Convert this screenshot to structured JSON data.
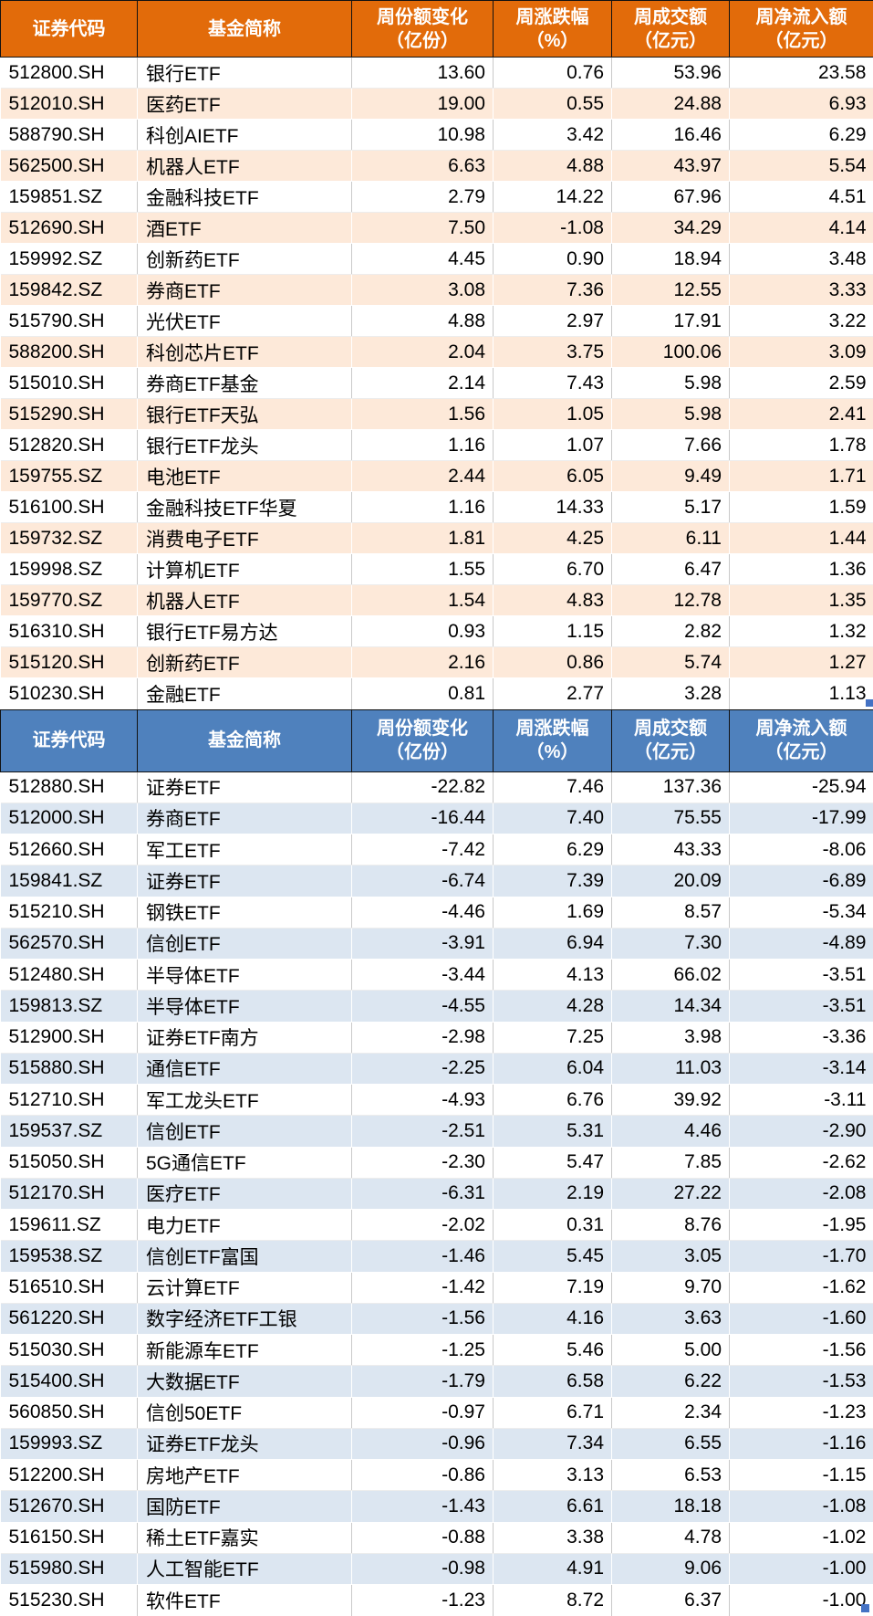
{
  "chart_data": [
    {
      "type": "table",
      "name": "weekly-net-inflow-ranking",
      "theme": {
        "header_bg": "#E26B0A",
        "header_text": "#FFFFFF",
        "band_bg": "#FDE9D9",
        "row_bg": "#FFFFFF",
        "text": "#000000"
      },
      "columns": [
        {
          "line1": "证券代码",
          "line2": ""
        },
        {
          "line1": "基金简称",
          "line2": ""
        },
        {
          "line1": "周份额变化",
          "line2": "（亿份）"
        },
        {
          "line1": "周涨跌幅",
          "line2": "（%）"
        },
        {
          "line1": "周成交额",
          "line2": "（亿元）"
        },
        {
          "line1": "周净流入额",
          "line2": "（亿元）"
        }
      ],
      "rows": [
        [
          "512800.SH",
          "银行ETF",
          "13.60",
          "0.76",
          "53.96",
          "23.58"
        ],
        [
          "512010.SH",
          "医药ETF",
          "19.00",
          "0.55",
          "24.88",
          "6.93"
        ],
        [
          "588790.SH",
          "科创AIETF",
          "10.98",
          "3.42",
          "16.46",
          "6.29"
        ],
        [
          "562500.SH",
          "机器人ETF",
          "6.63",
          "4.88",
          "43.97",
          "5.54"
        ],
        [
          "159851.SZ",
          "金融科技ETF",
          "2.79",
          "14.22",
          "67.96",
          "4.51"
        ],
        [
          "512690.SH",
          "酒ETF",
          "7.50",
          "-1.08",
          "34.29",
          "4.14"
        ],
        [
          "159992.SZ",
          "创新药ETF",
          "4.45",
          "0.90",
          "18.94",
          "3.48"
        ],
        [
          "159842.SZ",
          "券商ETF",
          "3.08",
          "7.36",
          "12.55",
          "3.33"
        ],
        [
          "515790.SH",
          "光伏ETF",
          "4.88",
          "2.97",
          "17.91",
          "3.22"
        ],
        [
          "588200.SH",
          "科创芯片ETF",
          "2.04",
          "3.75",
          "100.06",
          "3.09"
        ],
        [
          "515010.SH",
          "券商ETF基金",
          "2.14",
          "7.43",
          "5.98",
          "2.59"
        ],
        [
          "515290.SH",
          "银行ETF天弘",
          "1.56",
          "1.05",
          "5.98",
          "2.41"
        ],
        [
          "512820.SH",
          "银行ETF龙头",
          "1.16",
          "1.07",
          "7.66",
          "1.78"
        ],
        [
          "159755.SZ",
          "电池ETF",
          "2.44",
          "6.05",
          "9.49",
          "1.71"
        ],
        [
          "516100.SH",
          "金融科技ETF华夏",
          "1.16",
          "14.33",
          "5.17",
          "1.59"
        ],
        [
          "159732.SZ",
          "消费电子ETF",
          "1.81",
          "4.25",
          "6.11",
          "1.44"
        ],
        [
          "159998.SZ",
          "计算机ETF",
          "1.55",
          "6.70",
          "6.47",
          "1.36"
        ],
        [
          "159770.SZ",
          "机器人ETF",
          "1.54",
          "4.83",
          "12.78",
          "1.35"
        ],
        [
          "516310.SH",
          "银行ETF易方达",
          "0.93",
          "1.15",
          "2.82",
          "1.32"
        ],
        [
          "515120.SH",
          "创新药ETF",
          "2.16",
          "0.86",
          "5.74",
          "1.27"
        ],
        [
          "510230.SH",
          "金融ETF",
          "0.81",
          "2.77",
          "3.28",
          "1.13"
        ]
      ]
    },
    {
      "type": "table",
      "name": "weekly-net-outflow-ranking",
      "theme": {
        "header_bg": "#4F81BD",
        "header_text": "#FFFFFF",
        "band_bg": "#DCE6F1",
        "row_bg": "#FFFFFF",
        "text": "#000000"
      },
      "columns": [
        {
          "line1": "证券代码",
          "line2": ""
        },
        {
          "line1": "基金简称",
          "line2": ""
        },
        {
          "line1": "周份额变化",
          "line2": "（亿份）"
        },
        {
          "line1": "周涨跌幅",
          "line2": "（%）"
        },
        {
          "line1": "周成交额",
          "line2": "（亿元）"
        },
        {
          "line1": "周净流入额",
          "line2": "（亿元）"
        }
      ],
      "rows": [
        [
          "512880.SH",
          "证券ETF",
          "-22.82",
          "7.46",
          "137.36",
          "-25.94"
        ],
        [
          "512000.SH",
          "券商ETF",
          "-16.44",
          "7.40",
          "75.55",
          "-17.99"
        ],
        [
          "512660.SH",
          "军工ETF",
          "-7.42",
          "6.29",
          "43.33",
          "-8.06"
        ],
        [
          "159841.SZ",
          "证券ETF",
          "-6.74",
          "7.39",
          "20.09",
          "-6.89"
        ],
        [
          "515210.SH",
          "钢铁ETF",
          "-4.46",
          "1.69",
          "8.57",
          "-5.34"
        ],
        [
          "562570.SH",
          "信创ETF",
          "-3.91",
          "6.94",
          "7.30",
          "-4.89"
        ],
        [
          "512480.SH",
          "半导体ETF",
          "-3.44",
          "4.13",
          "66.02",
          "-3.51"
        ],
        [
          "159813.SZ",
          "半导体ETF",
          "-4.55",
          "4.28",
          "14.34",
          "-3.51"
        ],
        [
          "512900.SH",
          "证券ETF南方",
          "-2.98",
          "7.25",
          "3.98",
          "-3.36"
        ],
        [
          "515880.SH",
          "通信ETF",
          "-2.25",
          "6.04",
          "11.03",
          "-3.14"
        ],
        [
          "512710.SH",
          "军工龙头ETF",
          "-4.93",
          "6.76",
          "39.92",
          "-3.11"
        ],
        [
          "159537.SZ",
          "信创ETF",
          "-2.51",
          "5.31",
          "4.46",
          "-2.90"
        ],
        [
          "515050.SH",
          "5G通信ETF",
          "-2.30",
          "5.47",
          "7.85",
          "-2.62"
        ],
        [
          "512170.SH",
          "医疗ETF",
          "-6.31",
          "2.19",
          "27.22",
          "-2.08"
        ],
        [
          "159611.SZ",
          "电力ETF",
          "-2.02",
          "0.31",
          "8.76",
          "-1.95"
        ],
        [
          "159538.SZ",
          "信创ETF富国",
          "-1.46",
          "5.45",
          "3.05",
          "-1.70"
        ],
        [
          "516510.SH",
          "云计算ETF",
          "-1.42",
          "7.19",
          "9.70",
          "-1.62"
        ],
        [
          "561220.SH",
          "数字经济ETF工银",
          "-1.56",
          "4.16",
          "3.63",
          "-1.60"
        ],
        [
          "515030.SH",
          "新能源车ETF",
          "-1.25",
          "5.46",
          "5.00",
          "-1.56"
        ],
        [
          "515400.SH",
          "大数据ETF",
          "-1.79",
          "6.58",
          "6.22",
          "-1.53"
        ],
        [
          "560850.SH",
          "信创50ETF",
          "-0.97",
          "6.71",
          "2.34",
          "-1.23"
        ],
        [
          "159993.SZ",
          "证券ETF龙头",
          "-0.96",
          "7.34",
          "6.55",
          "-1.16"
        ],
        [
          "512200.SH",
          "房地产ETF",
          "-0.86",
          "3.13",
          "6.53",
          "-1.15"
        ],
        [
          "512670.SH",
          "国防ETF",
          "-1.43",
          "6.61",
          "18.18",
          "-1.08"
        ],
        [
          "516150.SH",
          "稀土ETF嘉实",
          "-0.88",
          "3.38",
          "4.78",
          "-1.02"
        ],
        [
          "515980.SH",
          "人工智能ETF",
          "-0.98",
          "4.91",
          "9.06",
          "-1.00"
        ],
        [
          "515230.SH",
          "软件ETF",
          "-1.23",
          "8.72",
          "6.37",
          "-1.00"
        ]
      ]
    }
  ],
  "decorations": {
    "selection_handle_color": "#4472C4"
  }
}
